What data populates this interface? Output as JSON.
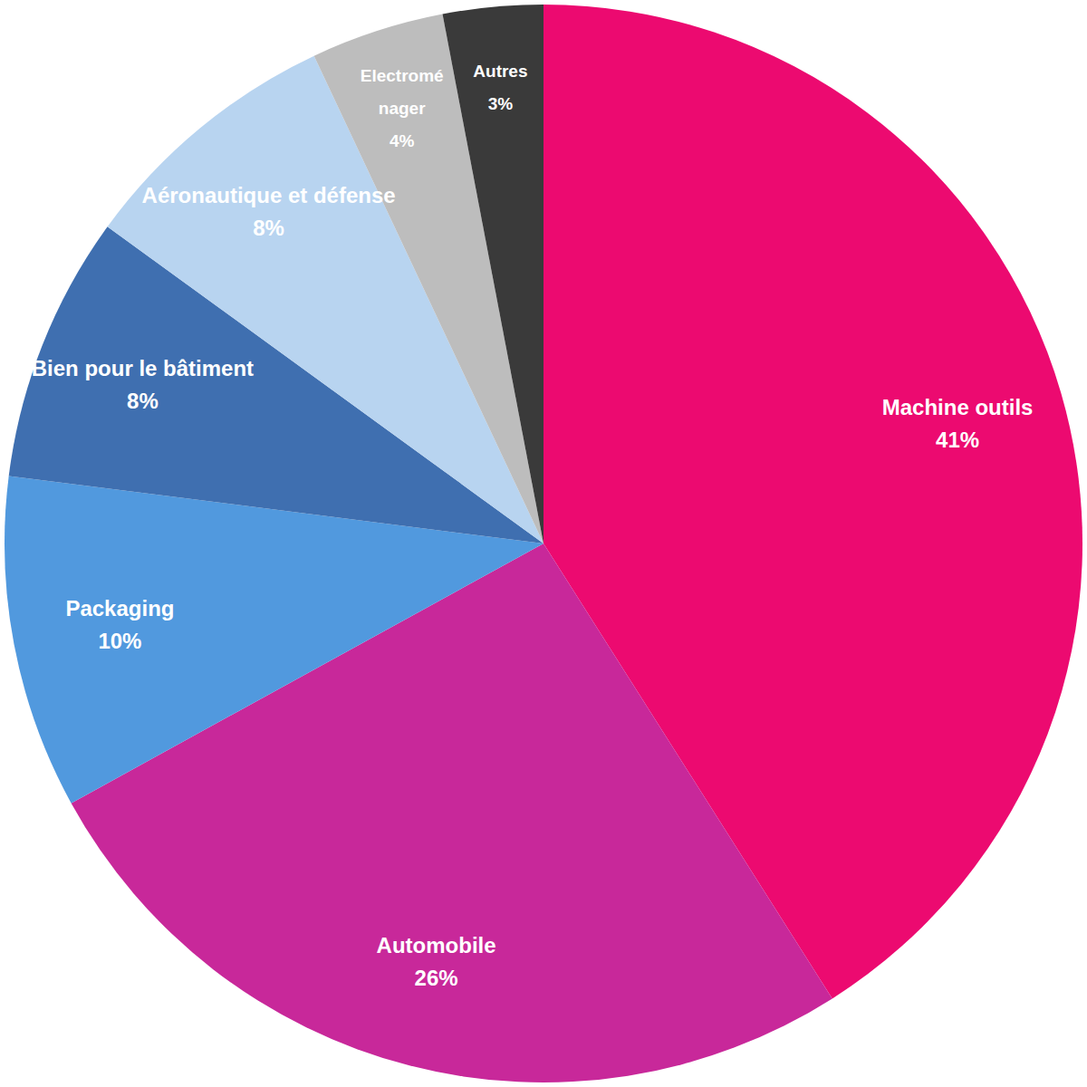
{
  "chart_data": {
    "type": "pie",
    "categories": [
      "Machine outils",
      "Automobile",
      "Packaging",
      "Bien pour le bâtiment",
      "Aéronautique et défense",
      "Electroménager",
      "Autres"
    ],
    "values": [
      41,
      26,
      10,
      8,
      8,
      4,
      3
    ],
    "value_labels": [
      "41%",
      "26%",
      "10%",
      "8%",
      "8%",
      "4%",
      "3%"
    ],
    "colors": [
      "#ec0a70",
      "#c8289a",
      "#5199de",
      "#3f6fb0",
      "#b8d4f0",
      "#bdbdbd",
      "#3a3a3a"
    ],
    "data_labels": true
  }
}
